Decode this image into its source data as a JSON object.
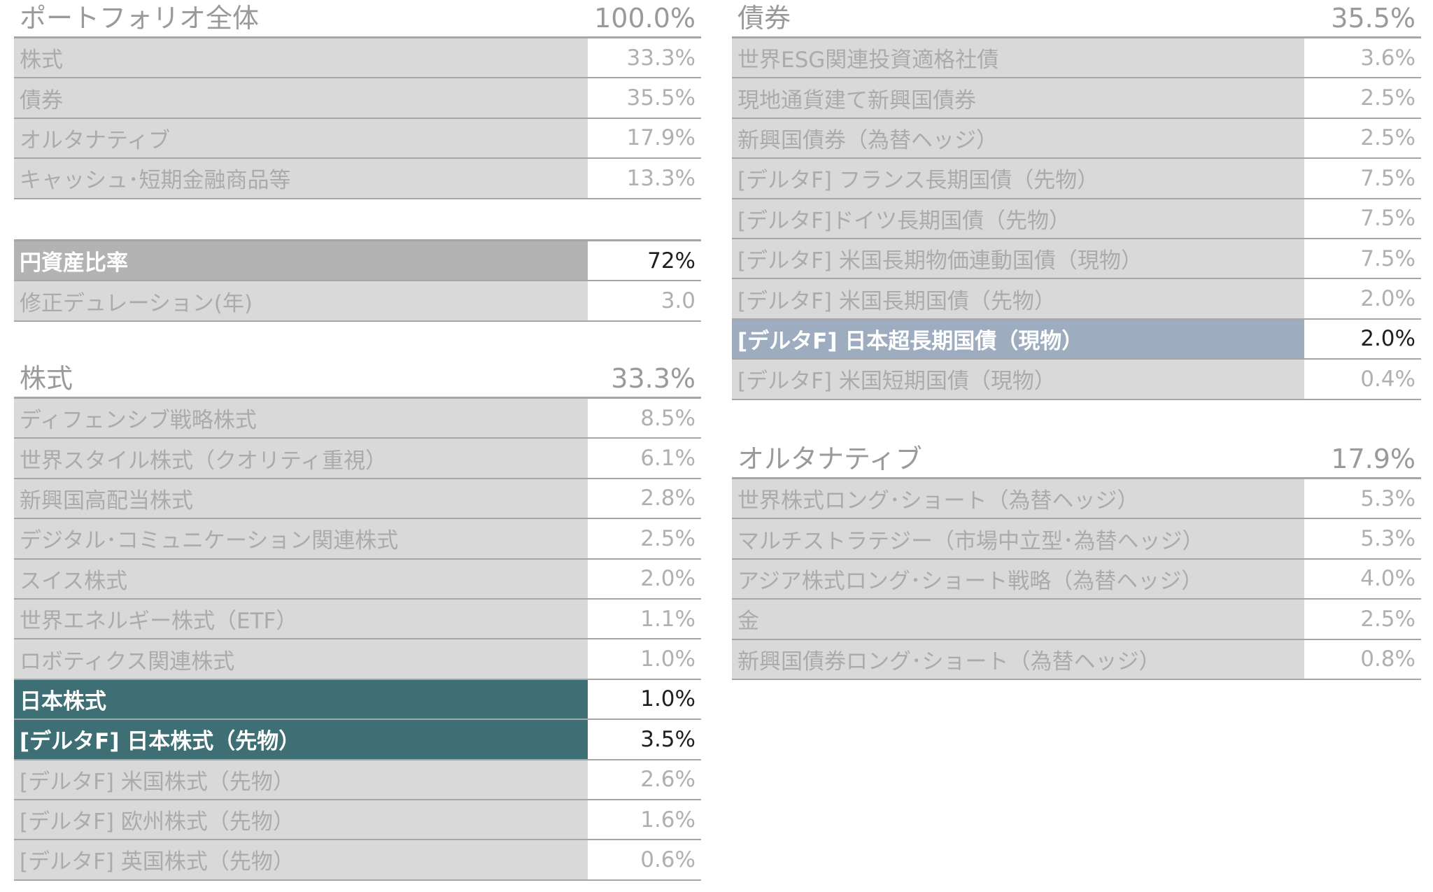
{
  "portfolio": {
    "title": "ポートフォリオ全体",
    "total": "100.0%",
    "rows": [
      {
        "label": "株式",
        "value": "33.3%"
      },
      {
        "label": "債券",
        "value": "35.5%"
      },
      {
        "label": "オルタナティブ",
        "value": "17.9%"
      },
      {
        "label": "キャッシュ･短期金融商品等",
        "value": "13.3%"
      }
    ]
  },
  "yen_box": {
    "rows": [
      {
        "label": "円資産比率",
        "value": "72%"
      },
      {
        "label": "修正デュレーション(年)",
        "value": "3.0"
      }
    ]
  },
  "stocks": {
    "title": "株式",
    "total": "33.3%",
    "rows": [
      {
        "label": "ディフェンシブ戦略株式",
        "value": "8.5%"
      },
      {
        "label": "世界スタイル株式（クオリティ重視）",
        "value": "6.1%"
      },
      {
        "label": "新興国高配当株式",
        "value": "2.8%"
      },
      {
        "label": "デジタル･コミュニケーション関連株式",
        "value": "2.5%"
      },
      {
        "label": "スイス株式",
        "value": "2.0%"
      },
      {
        "label": "世界エネルギー株式（ETF）",
        "value": "1.1%"
      },
      {
        "label": "ロボティクス関連株式",
        "value": "1.0%"
      },
      {
        "label": "日本株式",
        "value": "1.0%"
      },
      {
        "label": "[デルタF] 日本株式（先物）",
        "value": "3.5%"
      },
      {
        "label": "[デルタF] 米国株式（先物）",
        "value": "2.6%"
      },
      {
        "label": "[デルタF] 欧州株式（先物）",
        "value": "1.6%"
      },
      {
        "label": "[デルタF] 英国株式（先物）",
        "value": "0.6%"
      }
    ]
  },
  "bonds": {
    "title": "債券",
    "total": "35.5%",
    "rows": [
      {
        "label": "世界ESG関連投資適格社債",
        "value": "3.6%"
      },
      {
        "label": "現地通貨建て新興国債券",
        "value": "2.5%"
      },
      {
        "label": "新興国債券（為替ヘッジ）",
        "value": "2.5%"
      },
      {
        "label": "[デルタF] フランス長期国債（先物）",
        "value": "7.5%"
      },
      {
        "label": "[デルタF]ドイツ長期国債（先物）",
        "value": "7.5%"
      },
      {
        "label": "[デルタF] 米国長期物価連動国債（現物）",
        "value": "7.5%"
      },
      {
        "label": "[デルタF] 米国長期国債（先物）",
        "value": "2.0%"
      },
      {
        "label": "[デルタF] 日本超長期国債（現物）",
        "value": "2.0%"
      },
      {
        "label": "[デルタF] 米国短期国債（現物）",
        "value": "0.4%"
      }
    ]
  },
  "alternatives": {
    "title": "オルタナティブ",
    "total": "17.9%",
    "rows": [
      {
        "label": "世界株式ロング･ショート（為替ヘッジ）",
        "value": "5.3%"
      },
      {
        "label": "マルチストラテジー（市場中立型･為替ヘッジ）",
        "value": "5.3%"
      },
      {
        "label": "アジア株式ロング･ショート戦略（為替ヘッジ）",
        "value": "4.0%"
      },
      {
        "label": "金",
        "value": "2.5%"
      },
      {
        "label": "新興国債券ロング･ショート（為替ヘッジ）",
        "value": "0.8%"
      }
    ]
  },
  "colors": {
    "teal_highlight": "#3d6f75",
    "blue_highlight": "#9dadbf",
    "gray_highlight": "#b3b3b3",
    "row_bg": "#d9d9d9"
  }
}
